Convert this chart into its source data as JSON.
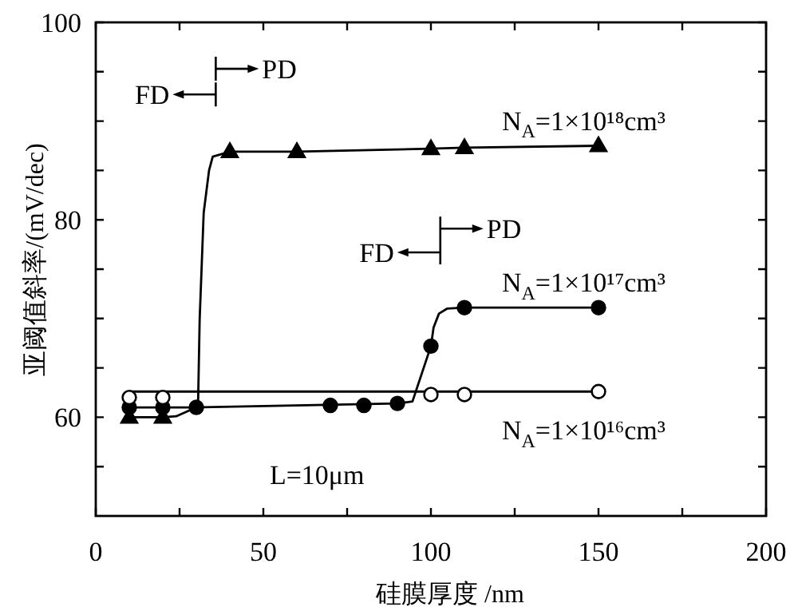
{
  "chart_data": {
    "type": "scatter",
    "xlabel": "硅膜厚度 /nm",
    "ylabel": "亚阈值斜率/(mV/dec)",
    "xlim": [
      0,
      200
    ],
    "xticks": [
      0,
      {
        "value": 25,
        "label": null
      },
      50,
      {
        "value": 75,
        "label": null
      },
      100,
      {
        "value": 125,
        "label": null
      },
      150,
      {
        "value": 175,
        "label": null
      },
      200
    ],
    "ylim": [
      50,
      100
    ],
    "yticks": [
      {
        "value": 55,
        "label": null
      },
      60,
      {
        "value": 65,
        "label": null
      },
      {
        "value": 70,
        "label": null
      },
      {
        "value": 75,
        "label": null
      },
      80,
      {
        "value": 85,
        "label": null
      },
      {
        "value": 90,
        "label": null
      },
      {
        "value": 95,
        "label": null
      },
      100
    ],
    "series": [
      {
        "type": "line",
        "marker": "none",
        "color": "#000000",
        "x": [
          10,
          20,
          24,
          28,
          30.5,
          31,
          32.2,
          33.8,
          34.9,
          38,
          40,
          60,
          100,
          110,
          150
        ],
        "values": [
          60,
          60,
          60.1,
          60.7,
          60.9,
          69.9,
          80.7,
          85,
          86.4,
          86.7,
          86.9,
          86.9,
          87.2,
          87.3,
          87.5
        ]
      },
      {
        "type": "line",
        "marker": "none",
        "color": "#000000",
        "x": [
          10,
          30,
          90,
          94.5,
          100,
          100.8,
          102.4,
          104.8,
          110,
          150
        ],
        "values": [
          61,
          61,
          61.4,
          61.6,
          67.2,
          69.1,
          70.5,
          71,
          71.1,
          71.1
        ]
      },
      {
        "type": "line",
        "marker": "none",
        "color": "#000000",
        "x": [
          10,
          150
        ],
        "values": [
          62.6,
          62.6
        ]
      },
      {
        "name": "N$_{A}$=1×10¹⁸cm³",
        "marker": "triangle",
        "color": "#000000",
        "x": [
          10,
          20,
          40,
          60,
          100,
          110,
          150
        ],
        "values": [
          60,
          60,
          86.9,
          86.9,
          87.2,
          87.3,
          87.5
        ]
      },
      {
        "name": "N$_{A}$=1×10¹⁷cm³",
        "marker": "circle",
        "color": "#000000",
        "x": [
          10,
          20,
          30,
          70,
          80,
          90,
          100,
          110,
          150
        ],
        "values": [
          61,
          61,
          61,
          61.2,
          61.2,
          61.4,
          67.2,
          71.1,
          71.1
        ]
      },
      {
        "name": "N$_{A}$=1×10¹⁶cm³",
        "marker": "circle",
        "color": "#ffffff",
        "x": [
          10,
          20,
          100,
          110,
          150
        ],
        "values": [
          62,
          62,
          62.3,
          62.3,
          62.6
        ]
      }
    ],
    "annotations": [
      "FD",
      "PD",
      "FD",
      "PD",
      "L=10μm"
    ]
  }
}
